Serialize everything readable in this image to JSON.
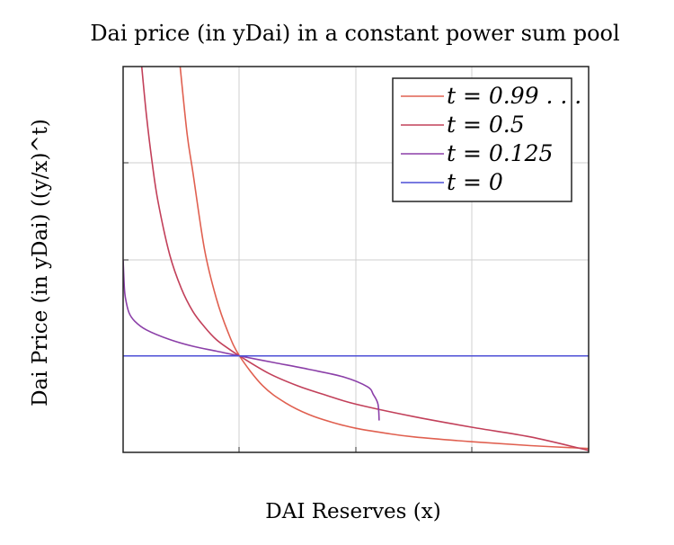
{
  "chart_data": {
    "type": "line",
    "title": "Dai price (in yDai) in a constant power sum pool",
    "xlabel": "DAI Reserves (x)",
    "ylabel": "Dai Price (in yDai) ((y/x)^t)",
    "xlim": [
      0,
      4
    ],
    "ylim": [
      0,
      4
    ],
    "grid": true,
    "legend_position": "top-right",
    "reference_point": [
      1,
      1
    ],
    "series": [
      {
        "name": "t = 0.99...",
        "legend_label": "t = 0.99 . . .",
        "color": "#e06050",
        "x": [
          0.49,
          0.55,
          0.6,
          0.7,
          0.8,
          0.9,
          1.0,
          1.2,
          1.4,
          1.6,
          1.8,
          2.0,
          2.25,
          2.5,
          3.0,
          3.5,
          4.0
        ],
        "y": [
          4.0,
          3.3,
          2.9,
          2.1,
          1.6,
          1.25,
          1.0,
          0.69,
          0.51,
          0.39,
          0.31,
          0.25,
          0.2,
          0.16,
          0.11,
          0.07,
          0.04
        ]
      },
      {
        "name": "t = 0.5",
        "legend_label": "t = 0.5",
        "color": "#c2405a",
        "x": [
          0.16,
          0.2,
          0.25,
          0.3,
          0.4,
          0.5,
          0.6,
          0.7,
          0.8,
          0.9,
          1.0,
          1.25,
          1.5,
          1.75,
          2.0,
          2.5,
          3.0,
          3.5,
          4.0
        ],
        "y": [
          4.0,
          3.5,
          3.0,
          2.6,
          2.05,
          1.7,
          1.46,
          1.3,
          1.17,
          1.08,
          1.0,
          0.82,
          0.69,
          0.59,
          0.5,
          0.37,
          0.26,
          0.16,
          0.02
        ]
      },
      {
        "name": "t = 0.125",
        "legend_label": "t = 0.125",
        "color": "#8b3fa8",
        "x": [
          0.0,
          0.01,
          0.02,
          0.05,
          0.1,
          0.2,
          0.4,
          0.6,
          0.8,
          1.0,
          1.3,
          1.6,
          1.9,
          2.1,
          2.15,
          2.19,
          2.2
        ],
        "y": [
          2.0,
          1.72,
          1.6,
          1.45,
          1.36,
          1.27,
          1.17,
          1.1,
          1.05,
          1.0,
          0.93,
          0.86,
          0.78,
          0.68,
          0.6,
          0.5,
          0.33
        ]
      },
      {
        "name": "t = 0",
        "legend_label": "t = 0",
        "color": "#4c4fd6",
        "x": [
          0,
          4
        ],
        "y": [
          1,
          1
        ]
      }
    ]
  }
}
